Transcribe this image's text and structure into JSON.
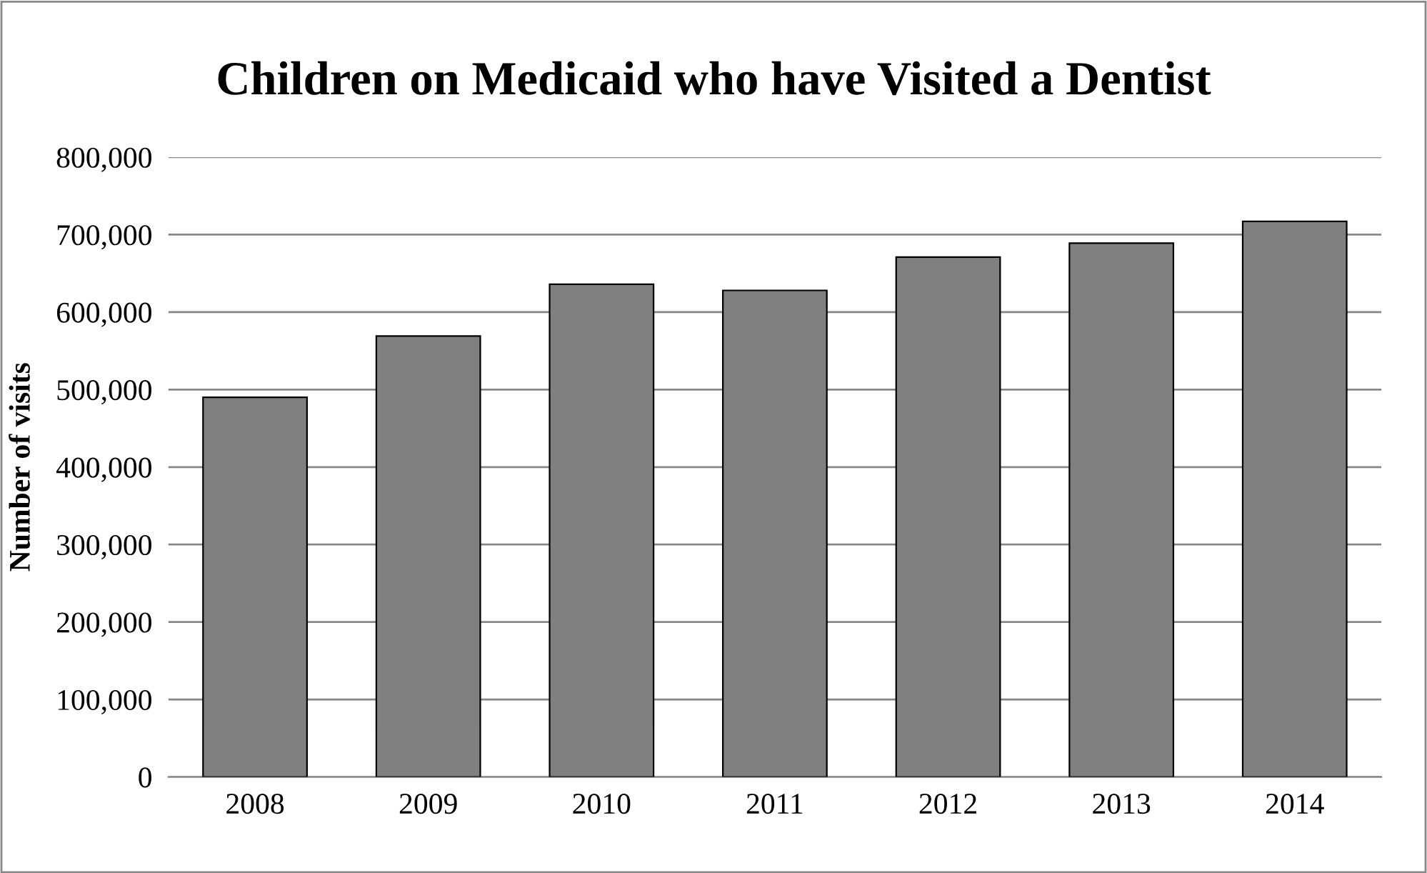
{
  "chart_data": {
    "type": "bar",
    "title": "Children on Medicaid who have Visited a Dentist",
    "ylabel": "Number of visits",
    "categories": [
      "2008",
      "2009",
      "2010",
      "2011",
      "2012",
      "2013",
      "2014"
    ],
    "values": [
      490000,
      569000,
      636000,
      628000,
      671000,
      689000,
      717000
    ],
    "color": "#808080",
    "ylim": [
      0,
      800000
    ],
    "yticks": [
      {
        "value": 0,
        "label": "0"
      },
      {
        "value": 100000,
        "label": "100,000"
      },
      {
        "value": 200000,
        "label": "200,000"
      },
      {
        "value": 300000,
        "label": "300,000"
      },
      {
        "value": 400000,
        "label": "400,000"
      },
      {
        "value": 500000,
        "label": "500,000"
      },
      {
        "value": 600000,
        "label": "600,000"
      },
      {
        "value": 700000,
        "label": "700,000"
      },
      {
        "value": 800000,
        "label": "800,000"
      }
    ],
    "grid": "y"
  }
}
